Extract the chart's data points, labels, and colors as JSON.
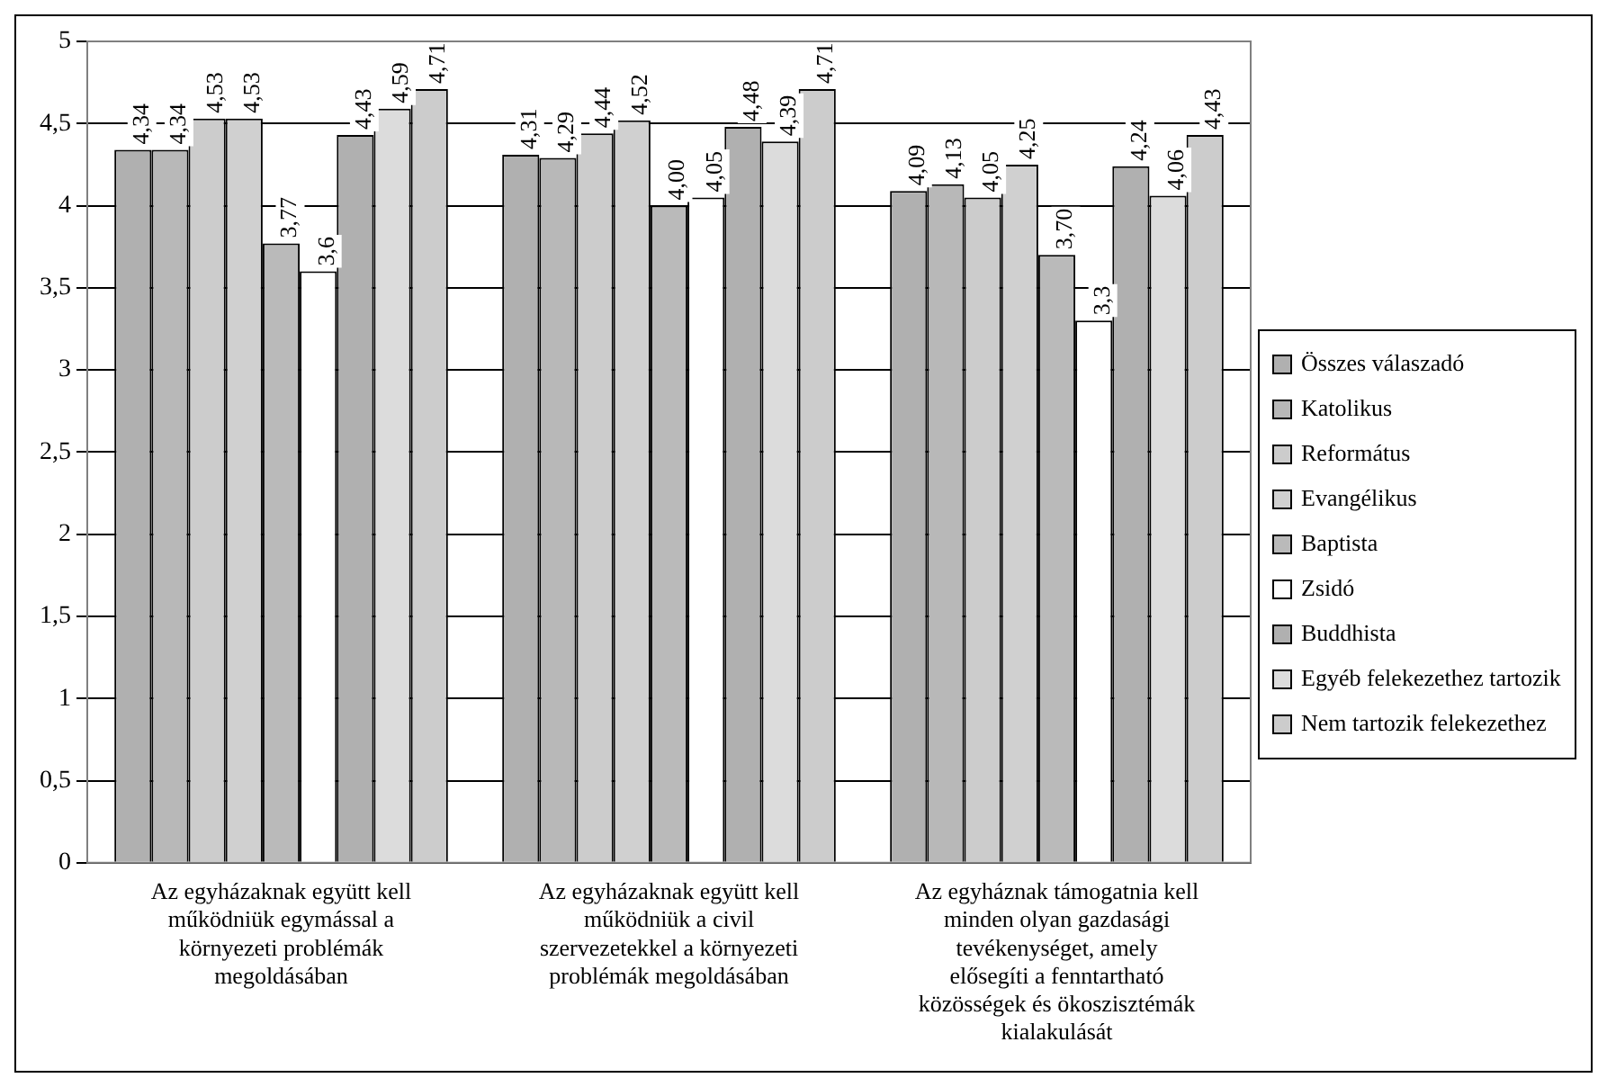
{
  "chart_data": {
    "type": "bar",
    "categories": [
      "Az egyházaknak együtt kell működniük egymással a környezeti problémák megoldásában",
      "Az egyházaknak együtt kell működniük a civil szervezetekkel a környezeti problémák megoldásában",
      "Az egyháznak támogatnia kell minden olyan gazdasági tevékenységet, amely elősegíti a fenntartható közösségek és ökoszisztémák kialakulását"
    ],
    "series": [
      {
        "name": "Összes válaszadó",
        "color": "#b0b0b0",
        "values": [
          4.34,
          4.31,
          4.09
        ],
        "value_labels": [
          "4,34",
          "4,31",
          "4,09"
        ]
      },
      {
        "name": "Katolikus",
        "color": "#b8b8b8",
        "values": [
          4.34,
          4.29,
          4.13
        ],
        "value_labels": [
          "4,34",
          "4,29",
          "4,13"
        ]
      },
      {
        "name": "Református",
        "color": "#cccccc",
        "values": [
          4.53,
          4.44,
          4.05
        ],
        "value_labels": [
          "4,53",
          "4,44",
          "4,05"
        ]
      },
      {
        "name": "Evangélikus",
        "color": "#d0d0d0",
        "values": [
          4.53,
          4.52,
          4.25
        ],
        "value_labels": [
          "4,53",
          "4,52",
          "4,25"
        ]
      },
      {
        "name": "Baptista",
        "color": "#bababa",
        "values": [
          3.77,
          4.0,
          3.7
        ],
        "value_labels": [
          "3,77",
          "4,00",
          "3,70"
        ]
      },
      {
        "name": "Zsidó",
        "color": "#ffffff",
        "values": [
          3.6,
          4.05,
          3.3
        ],
        "value_labels": [
          "3,6",
          "4,05",
          "3,3"
        ]
      },
      {
        "name": "Buddhista",
        "color": "#b0b0b0",
        "values": [
          4.43,
          4.48,
          4.24
        ],
        "value_labels": [
          "4,43",
          "4,48",
          "4,24"
        ]
      },
      {
        "name": "Egyéb felekezethez tartozik",
        "color": "#dcdcdc",
        "values": [
          4.59,
          4.39,
          4.06
        ],
        "value_labels": [
          "4,59",
          "4,39",
          "4,06"
        ]
      },
      {
        "name": "Nem tartozik felekezethez",
        "color": "#cccccc",
        "values": [
          4.71,
          4.71,
          4.43
        ],
        "value_labels": [
          "4,71",
          "4,71",
          "4,43"
        ]
      }
    ],
    "ylim": [
      0,
      5
    ],
    "yticks": [
      {
        "value": 0,
        "label": "0"
      },
      {
        "value": 0.5,
        "label": "0,5"
      },
      {
        "value": 1,
        "label": "1"
      },
      {
        "value": 1.5,
        "label": "1,5"
      },
      {
        "value": 2,
        "label": "2"
      },
      {
        "value": 2.5,
        "label": "2,5"
      },
      {
        "value": 3,
        "label": "3"
      },
      {
        "value": 3.5,
        "label": "3,5"
      },
      {
        "value": 4,
        "label": "4"
      },
      {
        "value": 4.5,
        "label": "4,5"
      },
      {
        "value": 5,
        "label": "5"
      }
    ],
    "grid": "y",
    "legend": "right"
  }
}
